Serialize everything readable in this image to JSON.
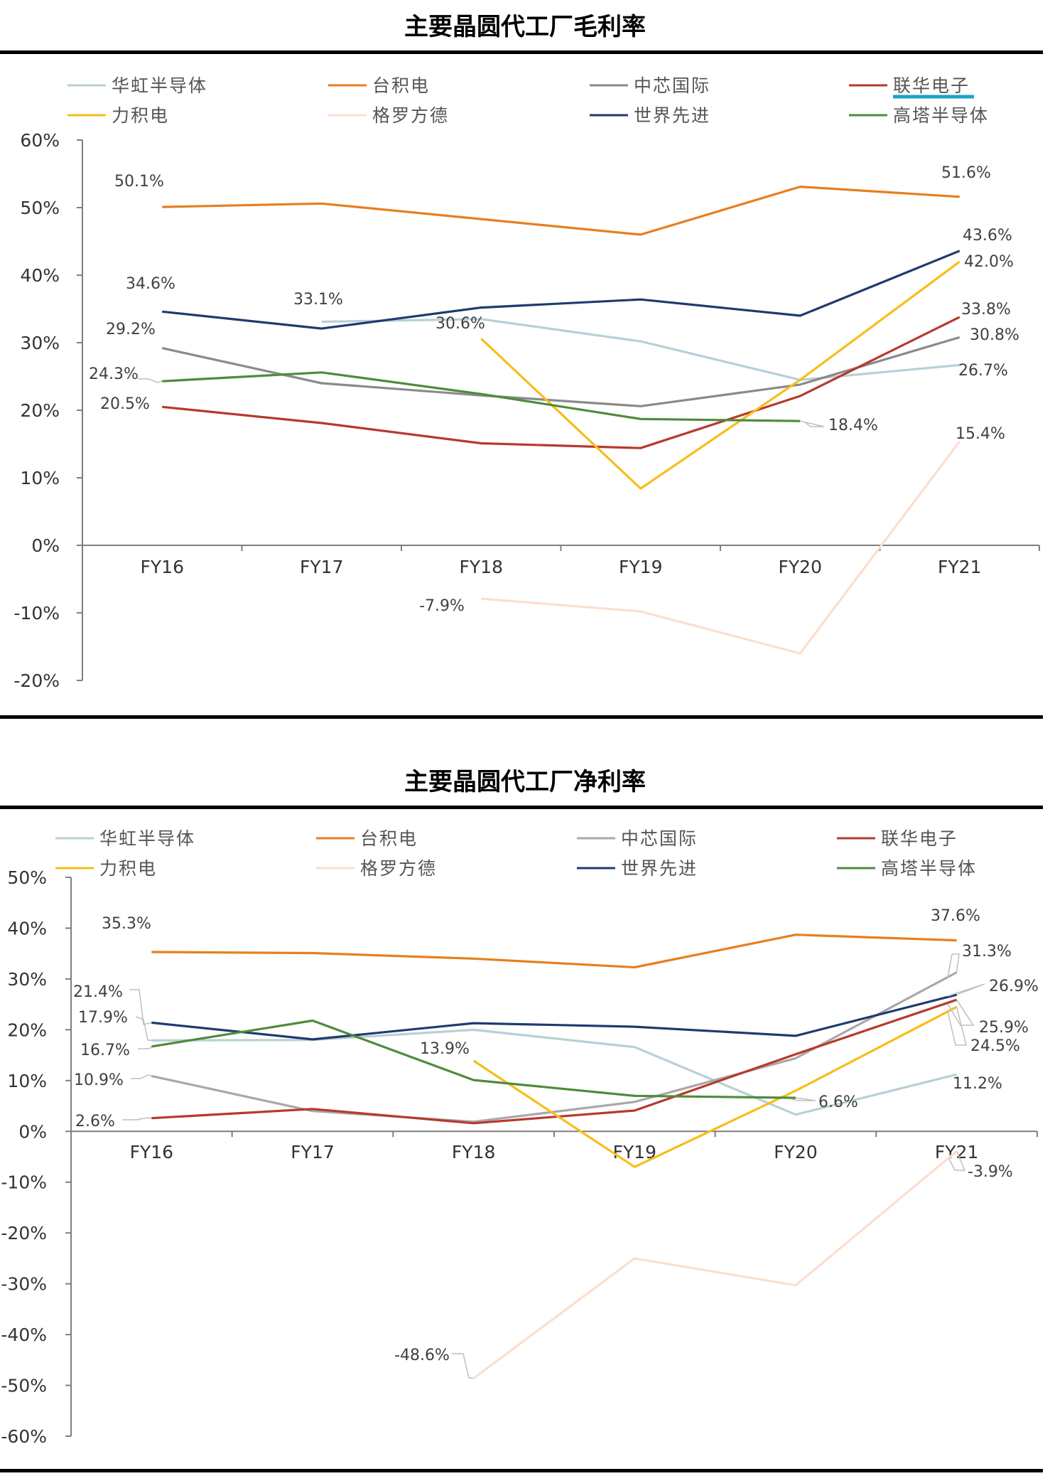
{
  "chart_data": [
    {
      "type": "line",
      "title": "主要晶圆代工厂毛利率",
      "categories": [
        "FY16",
        "FY17",
        "FY18",
        "FY19",
        "FY20",
        "FY21"
      ],
      "ylim": [
        -20,
        60
      ],
      "yticks": [
        -20,
        -10,
        0,
        10,
        20,
        30,
        40,
        50,
        60
      ],
      "ytick_labels": [
        "-20%",
        "-10%",
        "0%",
        "10%",
        "20%",
        "30%",
        "40%",
        "50%",
        "60%"
      ],
      "legend_position": "top",
      "grid": false,
      "series": [
        {
          "name": "华虹半导体",
          "color": "#b8d0d6",
          "values": [
            null,
            33.1,
            33.5,
            30.2,
            24.5,
            26.7
          ]
        },
        {
          "name": "台积电",
          "color": "#e87e1f",
          "values": [
            50.1,
            50.6,
            48.3,
            46.0,
            53.1,
            51.6
          ]
        },
        {
          "name": "中芯国际",
          "color": "#8a8a8a",
          "values": [
            29.2,
            24.0,
            22.2,
            20.6,
            23.8,
            30.8
          ]
        },
        {
          "name": "联华电子",
          "color": "#b7392d",
          "values": [
            20.5,
            18.1,
            15.1,
            14.4,
            22.1,
            33.8
          ]
        },
        {
          "name": "力积电",
          "color": "#f7be1a",
          "values": [
            null,
            null,
            30.6,
            8.4,
            24.5,
            42.0
          ]
        },
        {
          "name": "格罗方德",
          "color": "#fbded0",
          "values": [
            null,
            null,
            -7.9,
            -9.8,
            -16.0,
            15.4
          ]
        },
        {
          "name": "世界先进",
          "color": "#1f3b6e",
          "values": [
            34.6,
            32.1,
            35.2,
            36.4,
            34.0,
            43.6
          ]
        },
        {
          "name": "高塔半导体",
          "color": "#4e8b3a",
          "values": [
            24.3,
            25.6,
            22.4,
            18.7,
            18.4,
            null
          ]
        }
      ],
      "labels": [
        "50.1%",
        "51.6%",
        "43.6%",
        "42.0%",
        "34.6%",
        "33.1%",
        "30.6%",
        "29.2%",
        "33.8%",
        "30.8%",
        "24.3%",
        "26.7%",
        "20.5%",
        "18.4%",
        "15.4%",
        "-7.9%"
      ]
    },
    {
      "type": "line",
      "title": "主要晶圆代工厂净利率",
      "categories": [
        "FY16",
        "FY17",
        "FY18",
        "FY19",
        "FY20",
        "FY21"
      ],
      "ylim": [
        -60,
        50
      ],
      "yticks": [
        -60,
        -50,
        -40,
        -30,
        -20,
        -10,
        0,
        10,
        20,
        30,
        40,
        50
      ],
      "ytick_labels": [
        "-60%",
        "-50%",
        "-40%",
        "-30%",
        "-20%",
        "-10%",
        "0%",
        "10%",
        "20%",
        "30%",
        "40%",
        "50%"
      ],
      "legend_position": "top",
      "grid": false,
      "series": [
        {
          "name": "华虹半导体",
          "color": "#b8d0d6",
          "values": [
            17.9,
            18.0,
            20.0,
            16.6,
            3.3,
            11.2
          ]
        },
        {
          "name": "台积电",
          "color": "#e87e1f",
          "values": [
            35.3,
            35.1,
            34.0,
            32.3,
            38.7,
            37.6
          ]
        },
        {
          "name": "中芯国际",
          "color": "#a8a8a8",
          "values": [
            10.9,
            4.0,
            1.9,
            5.8,
            14.4,
            31.3
          ]
        },
        {
          "name": "联华电子",
          "color": "#b7392d",
          "values": [
            2.6,
            4.4,
            1.6,
            4.1,
            15.2,
            25.9
          ]
        },
        {
          "name": "力积电",
          "color": "#f7be1a",
          "values": [
            null,
            null,
            13.9,
            -7.0,
            8.0,
            24.5
          ]
        },
        {
          "name": "格罗方德",
          "color": "#fbded0",
          "values": [
            null,
            null,
            -48.6,
            -25.0,
            -30.3,
            -3.9
          ]
        },
        {
          "name": "世界先进",
          "color": "#1f3b6e",
          "values": [
            21.4,
            18.1,
            21.3,
            20.6,
            18.8,
            26.9
          ]
        },
        {
          "name": "高塔半导体",
          "color": "#4e8b3a",
          "values": [
            16.7,
            21.8,
            10.1,
            7.0,
            6.6,
            null
          ]
        }
      ],
      "labels": [
        "35.3%",
        "37.6%",
        "31.3%",
        "26.9%",
        "25.9%",
        "24.5%",
        "21.4%",
        "17.9%",
        "16.7%",
        "13.9%",
        "10.9%",
        "11.2%",
        "6.6%",
        "2.6%",
        "-3.9%",
        "-48.6%"
      ]
    }
  ]
}
